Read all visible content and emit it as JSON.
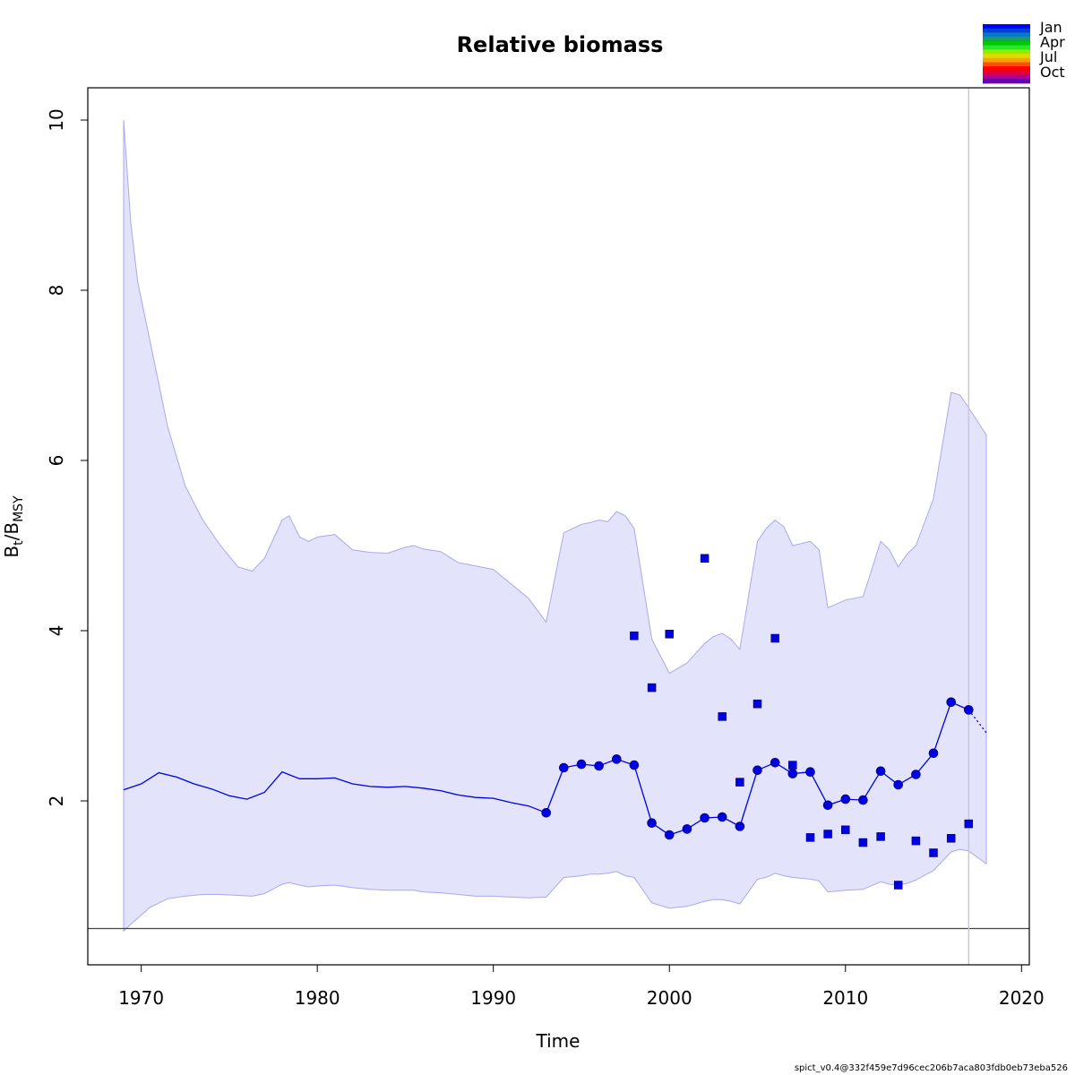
{
  "chart_data": {
    "type": "line",
    "title": "Relative biomass",
    "xlabel": "Time",
    "ylabel": {
      "main": "B",
      "sub1": "t",
      "sep": "/B",
      "sub2": "MSY"
    },
    "xlim": [
      1967,
      2020.5
    ],
    "ylim": [
      0.2,
      10.4
    ],
    "xticks": [
      1970,
      1980,
      1990,
      2000,
      2010,
      2020
    ],
    "yticks": [
      2,
      4,
      6,
      8,
      10
    ],
    "grid": false,
    "colors": {
      "series": "#0000e0",
      "band_fill": "#e3e3fb",
      "band_line": "#a8a8f0",
      "reference_line": "#444444",
      "vline": "#c8c8d8"
    },
    "reference_line_y": 0.5,
    "vertical_line_x": 2017,
    "estimate_line": {
      "name": "",
      "x": [
        1969,
        1970,
        1971,
        1972,
        1973,
        1974,
        1975,
        1976,
        1977,
        1978,
        1979,
        1980,
        1981,
        1982,
        1983,
        1984,
        1985,
        1986,
        1987,
        1988,
        1989,
        1990,
        1991,
        1992,
        1993
      ],
      "y": [
        2.13,
        2.2,
        2.33,
        2.28,
        2.2,
        2.14,
        2.06,
        2.02,
        2.1,
        2.34,
        2.26,
        2.26,
        2.27,
        2.2,
        2.17,
        2.16,
        2.17,
        2.15,
        2.12,
        2.07,
        2.04,
        2.03,
        1.98,
        1.94,
        1.86
      ]
    },
    "annual_points": {
      "x": [
        1993,
        1994,
        1995,
        1996,
        1997,
        1998,
        1999,
        2000,
        2001,
        2002,
        2003,
        2004,
        2005,
        2006,
        2007,
        2008,
        2009,
        2010,
        2011,
        2012,
        2013,
        2014,
        2015,
        2016,
        2017
      ],
      "y": [
        1.86,
        2.39,
        2.43,
        2.41,
        2.49,
        2.42,
        1.74,
        1.6,
        1.67,
        1.8,
        1.81,
        1.7,
        2.36,
        2.45,
        2.32,
        2.34,
        1.95,
        2.02,
        2.01,
        2.35,
        2.19,
        2.31,
        2.56,
        3.16,
        3.07
      ]
    },
    "forecast": {
      "x": [
        2017,
        2018
      ],
      "y": [
        3.07,
        2.8
      ]
    },
    "observations": {
      "x": [
        1998,
        1999,
        2000,
        2002,
        2003,
        2004,
        2005,
        2006,
        2007,
        2008,
        2009,
        2010,
        2011,
        2012,
        2013,
        2014,
        2015,
        2016,
        2017
      ],
      "y": [
        3.94,
        3.33,
        3.96,
        4.85,
        2.99,
        2.22,
        3.14,
        3.91,
        2.42,
        1.57,
        1.61,
        1.66,
        1.51,
        1.58,
        1.01,
        1.53,
        1.39,
        1.56,
        1.73
      ]
    },
    "confidence_band": {
      "x": [
        1969,
        1969.4,
        1969.8,
        1970.5,
        1971.5,
        1972.5,
        1973.5,
        1974.5,
        1975.5,
        1976.3,
        1977,
        1978,
        1978.4,
        1979,
        1979.5,
        1980,
        1981,
        1982,
        1983,
        1984,
        1985,
        1985.5,
        1986,
        1987,
        1988,
        1989,
        1990,
        1991,
        1992,
        1993,
        1994,
        1995,
        1995.5,
        1996,
        1996.5,
        1997,
        1997.5,
        1998,
        1999,
        2000,
        2001,
        2002,
        2002.5,
        2003,
        2003.5,
        2004,
        2005,
        2005.5,
        2006,
        2006.5,
        2007,
        2008,
        2008.5,
        2009,
        2010,
        2011,
        2012,
        2012.5,
        2013,
        2013.5,
        2014,
        2015,
        2016,
        2016.5,
        2017,
        2018
      ],
      "upper": [
        10.0,
        8.8,
        8.1,
        7.4,
        6.4,
        5.7,
        5.3,
        5.0,
        4.75,
        4.7,
        4.85,
        5.3,
        5.35,
        5.1,
        5.05,
        5.1,
        5.13,
        4.95,
        4.92,
        4.91,
        4.98,
        5.0,
        4.96,
        4.93,
        4.8,
        4.76,
        4.72,
        4.55,
        4.38,
        4.1,
        5.15,
        5.25,
        5.27,
        5.3,
        5.28,
        5.4,
        5.35,
        5.2,
        3.9,
        3.5,
        3.62,
        3.85,
        3.93,
        3.97,
        3.9,
        3.78,
        5.05,
        5.2,
        5.3,
        5.22,
        5.0,
        5.05,
        4.95,
        4.27,
        4.36,
        4.4,
        5.05,
        4.95,
        4.75,
        4.9,
        5.0,
        5.55,
        6.8,
        6.77,
        6.62,
        6.3
      ],
      "lower": [
        0.47,
        0.55,
        0.62,
        0.75,
        0.85,
        0.88,
        0.9,
        0.9,
        0.89,
        0.88,
        0.91,
        1.02,
        1.04,
        1.01,
        0.99,
        1.0,
        1.01,
        0.98,
        0.96,
        0.95,
        0.95,
        0.95,
        0.93,
        0.92,
        0.9,
        0.88,
        0.88,
        0.87,
        0.86,
        0.87,
        1.1,
        1.12,
        1.14,
        1.14,
        1.15,
        1.17,
        1.12,
        1.1,
        0.8,
        0.74,
        0.76,
        0.82,
        0.84,
        0.84,
        0.82,
        0.79,
        1.08,
        1.1,
        1.15,
        1.12,
        1.1,
        1.08,
        1.06,
        0.93,
        0.95,
        0.96,
        1.05,
        1.02,
        1.01,
        1.03,
        1.07,
        1.18,
        1.4,
        1.43,
        1.41,
        1.26
      ]
    },
    "season_legend": {
      "labels": [
        "Jan",
        "Apr",
        "Jul",
        "Oct"
      ],
      "colors": [
        "#0000ff",
        "#0040d8",
        "#0a78c8",
        "#16a060",
        "#00c800",
        "#28e628",
        "#8cf000",
        "#dcdc00",
        "#ffa000",
        "#ff5000",
        "#ff0000",
        "#e00040",
        "#b00090",
        "#6000b0"
      ]
    }
  },
  "footer_text": "spict_v0.4@332f459e7d96cec206b7aca803fdb0eb73eba526"
}
